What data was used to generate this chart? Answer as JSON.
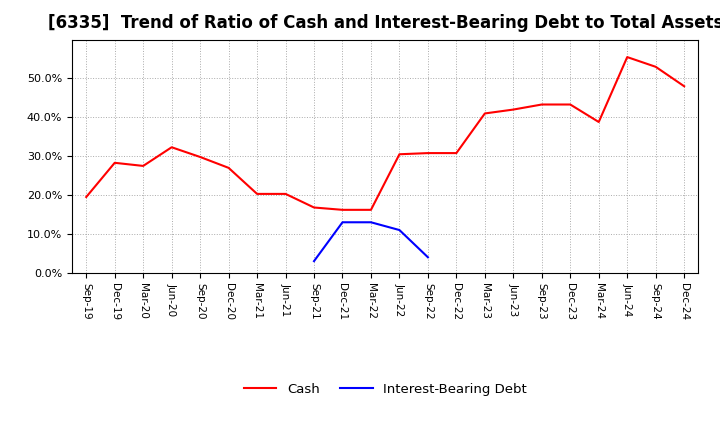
{
  "title": "[6335]  Trend of Ratio of Cash and Interest-Bearing Debt to Total Assets",
  "x_labels": [
    "Sep-19",
    "Dec-19",
    "Mar-20",
    "Jun-20",
    "Sep-20",
    "Dec-20",
    "Mar-21",
    "Jun-21",
    "Sep-21",
    "Dec-21",
    "Mar-22",
    "Jun-22",
    "Sep-22",
    "Dec-22",
    "Mar-23",
    "Jun-23",
    "Sep-23",
    "Dec-23",
    "Mar-24",
    "Jun-24",
    "Sep-24",
    "Dec-24"
  ],
  "cash": [
    0.195,
    0.283,
    0.275,
    0.323,
    0.298,
    0.27,
    0.203,
    0.203,
    0.168,
    0.162,
    0.162,
    0.305,
    0.308,
    0.308,
    0.41,
    0.42,
    0.433,
    0.433,
    0.388,
    0.555,
    0.53,
    0.48
  ],
  "interest_bearing_debt": [
    null,
    null,
    null,
    null,
    null,
    null,
    null,
    null,
    0.03,
    0.13,
    0.13,
    0.11,
    0.04,
    null,
    null,
    null,
    null,
    null,
    null,
    null,
    null,
    null
  ],
  "cash_color": "#ff0000",
  "debt_color": "#0000ff",
  "background_color": "#ffffff",
  "grid_color": "#aaaaaa",
  "ylim": [
    0.0,
    0.6
  ],
  "yticks": [
    0.0,
    0.1,
    0.2,
    0.3,
    0.4,
    0.5
  ],
  "title_fontsize": 12
}
